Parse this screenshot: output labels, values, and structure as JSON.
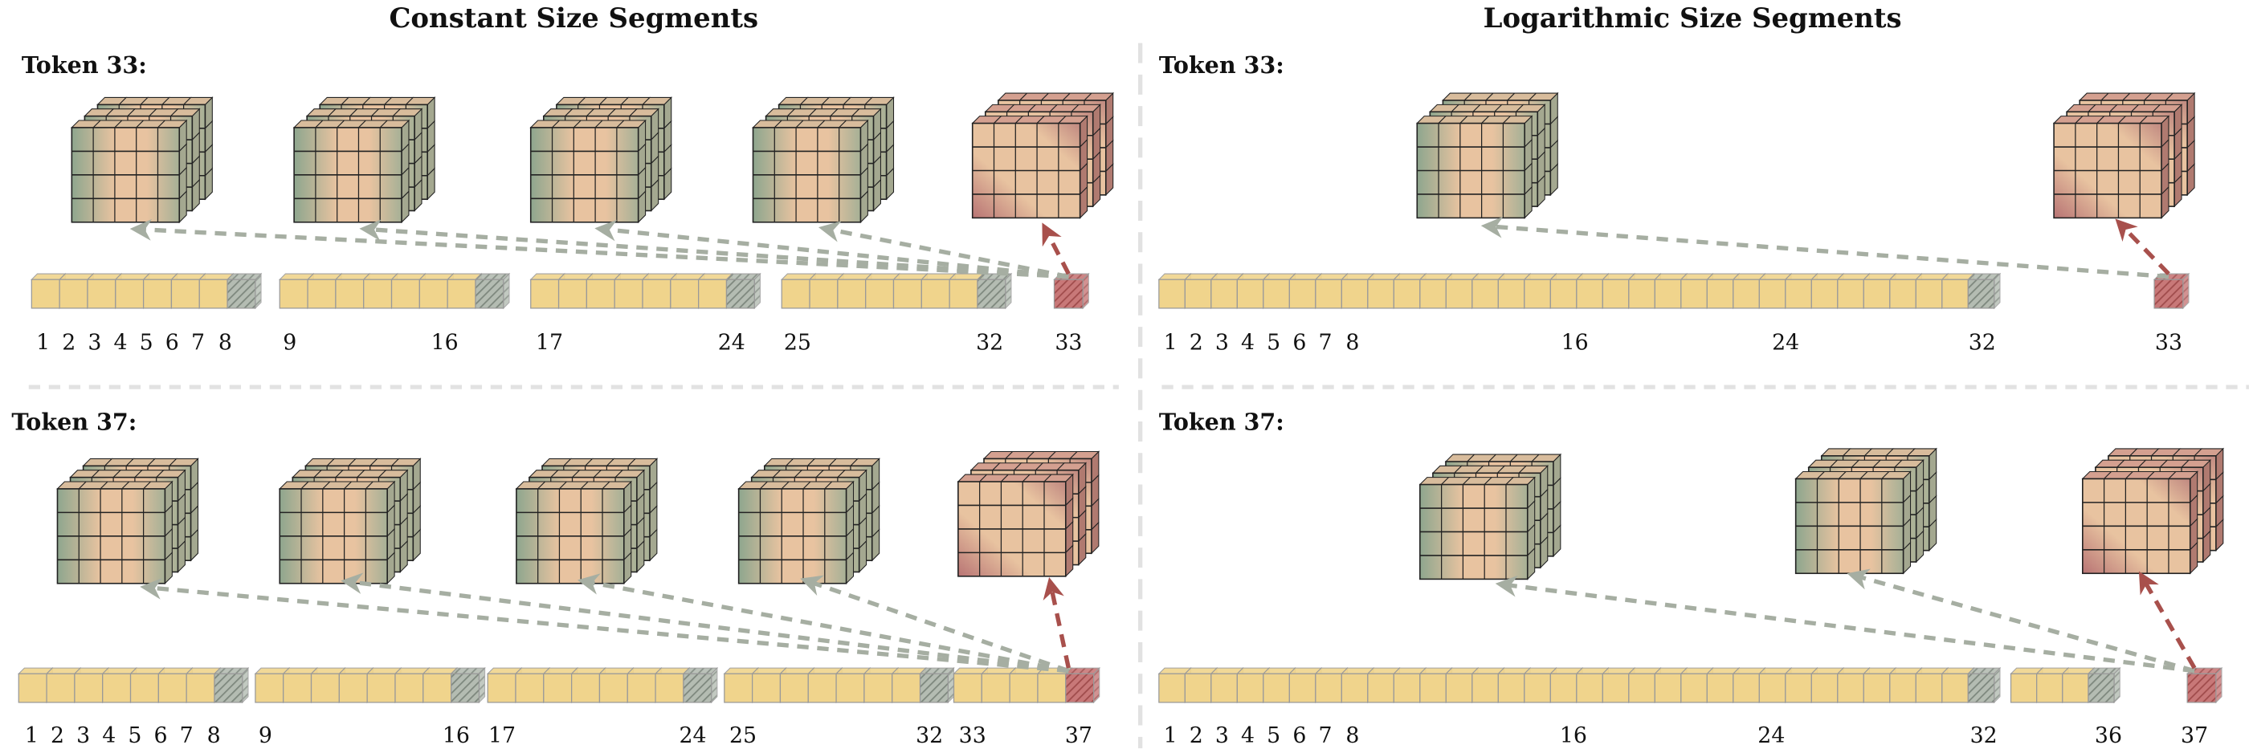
{
  "titles": {
    "left": "Constant Size Segments",
    "right": "Logarithmic Size Segments"
  },
  "colors": {
    "token": "#f0d48c",
    "summary_hatch": "#9aa59a",
    "query": "#b85a5a",
    "cube_green": "#8ea68e",
    "cube_peach": "#e8c3a0",
    "cube_red": "#b87474",
    "arrow_gray": "#a6aea2",
    "arrow_red": "#a8504c",
    "divider": "#e2e2e2"
  },
  "panels": [
    {
      "id": "constant-33",
      "label": "Token 33:",
      "query_token": 33,
      "segments": [
        [
          1,
          8
        ],
        [
          9,
          16
        ],
        [
          17,
          24
        ],
        [
          25,
          32
        ]
      ],
      "ticks": [
        "1",
        "2",
        "3",
        "4",
        "5",
        "6",
        "7",
        "8",
        "9",
        "16",
        "17",
        "24",
        "25",
        "32",
        "33"
      ]
    },
    {
      "id": "constant-37",
      "label": "Token 37:",
      "query_token": 37,
      "segments": [
        [
          1,
          8
        ],
        [
          9,
          16
        ],
        [
          17,
          24
        ],
        [
          25,
          32
        ],
        [
          33,
          36
        ]
      ],
      "ticks": [
        "1",
        "2",
        "3",
        "4",
        "5",
        "6",
        "7",
        "8",
        "9",
        "16",
        "17",
        "24",
        "25",
        "32",
        "33",
        "37"
      ]
    },
    {
      "id": "log-33",
      "label": "Token 33:",
      "query_token": 33,
      "segments": [
        [
          1,
          32
        ]
      ],
      "ticks": [
        "1",
        "2",
        "3",
        "4",
        "5",
        "6",
        "7",
        "8",
        "16",
        "24",
        "32",
        "33"
      ]
    },
    {
      "id": "log-37",
      "label": "Token 37:",
      "query_token": 37,
      "segments": [
        [
          1,
          32
        ],
        [
          33,
          36
        ]
      ],
      "ticks": [
        "1",
        "2",
        "3",
        "4",
        "5",
        "6",
        "7",
        "8",
        "16",
        "24",
        "32",
        "36",
        "37"
      ]
    }
  ]
}
